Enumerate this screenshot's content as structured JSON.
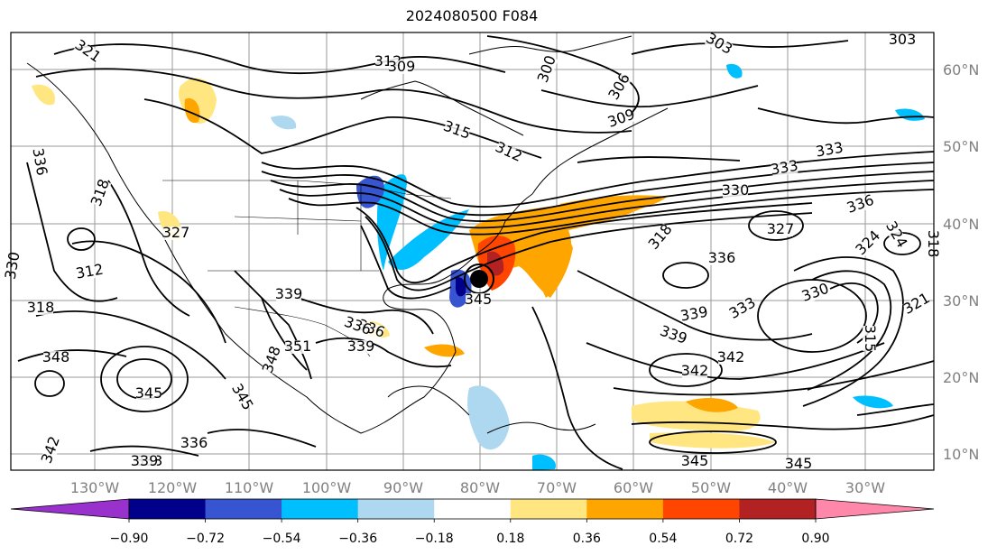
{
  "title": "2024080500 F084",
  "map": {
    "lon_labels": [
      "130°W",
      "120°W",
      "110°W",
      "100°W",
      "90°W",
      "80°W",
      "70°W",
      "60°W",
      "50°W",
      "40°W",
      "30°W"
    ],
    "lat_labels": [
      "60°N",
      "50°N",
      "40°N",
      "30°N",
      "20°N",
      "10°N"
    ],
    "contour_labels": [
      "321",
      "312",
      "309",
      "303",
      "303",
      "300",
      "306",
      "309",
      "315",
      "312",
      "333",
      "333",
      "330",
      "336",
      "327",
      "318",
      "318",
      "312",
      "330",
      "318",
      "327",
      "336",
      "348",
      "345",
      "345",
      "342",
      "336",
      "333",
      "339",
      "339",
      "336",
      "351",
      "348",
      "339",
      "336",
      "345",
      "342",
      "339",
      "336",
      "339",
      "342",
      "345",
      "345",
      "330",
      "333",
      "324",
      "324",
      "321",
      "318",
      "315"
    ]
  },
  "colorbar": {
    "ticks": [
      "−0.90",
      "−0.72",
      "−0.54",
      "−0.36",
      "−0.18",
      "0.18",
      "0.36",
      "0.54",
      "0.72",
      "0.90"
    ],
    "colors": [
      "#9932cc",
      "#00008b",
      "#3755d0",
      "#00bfff",
      "#add8f0",
      "#ffffff",
      "#ffe680",
      "#ffa500",
      "#ff4500",
      "#b22222",
      "#ff88aa"
    ]
  }
}
